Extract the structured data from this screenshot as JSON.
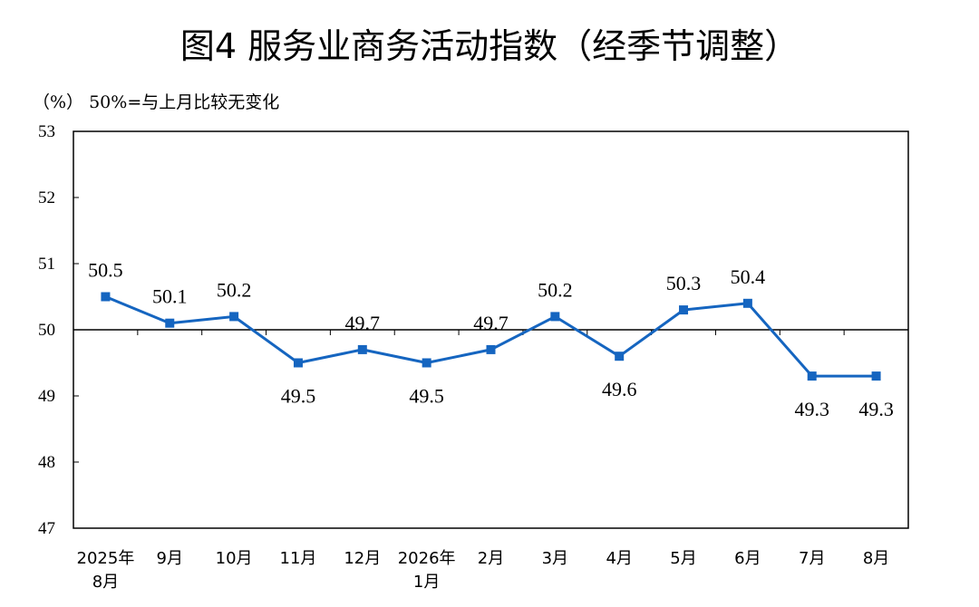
{
  "title": "图4  服务业商务活动指数（经季节调整）",
  "unit_note": "（%）  50%=与上月比较无变化",
  "colors": {
    "series": "#1565c0",
    "axis": "#000000"
  },
  "chart_data": {
    "type": "line",
    "title": "图4  服务业商务活动指数（经季节调整）",
    "ylabel": "（%）",
    "ylim": [
      47,
      53
    ],
    "yticks": [
      53,
      52,
      51,
      50,
      49,
      48,
      47
    ],
    "reference_line": 50,
    "grid": false,
    "marker": "square",
    "categories": [
      [
        "2025年",
        "8月"
      ],
      [
        "9月"
      ],
      [
        "10月"
      ],
      [
        "11月"
      ],
      [
        "12月"
      ],
      [
        "2026年",
        "1月"
      ],
      [
        "2月"
      ],
      [
        "3月"
      ],
      [
        "4月"
      ],
      [
        "5月"
      ],
      [
        "6月"
      ],
      [
        "7月"
      ],
      [
        "8月"
      ]
    ],
    "values": [
      50.5,
      50.1,
      50.2,
      49.5,
      49.7,
      49.5,
      49.7,
      50.2,
      49.6,
      50.3,
      50.4,
      49.3,
      49.3
    ],
    "data_labels": [
      "50.5",
      "50.1",
      "50.2",
      "49.5",
      "49.7",
      "49.5",
      "49.7",
      "50.2",
      "49.6",
      "50.3",
      "50.4",
      "49.3",
      "49.3"
    ],
    "label_positions": [
      "above",
      "above",
      "above",
      "below",
      "above",
      "below",
      "above",
      "above",
      "below",
      "above",
      "above",
      "below",
      "below"
    ]
  }
}
